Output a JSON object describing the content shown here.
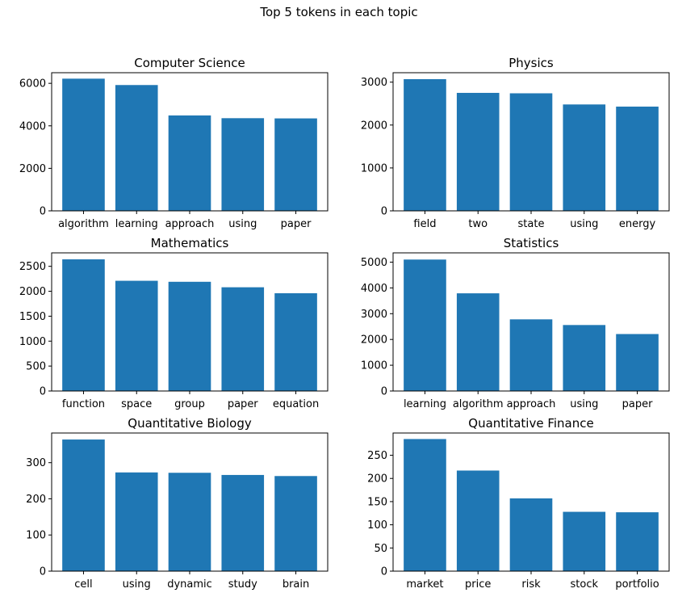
{
  "figure": {
    "suptitle": "Top 5 tokens in each topic",
    "bar_color": "#1f77b4"
  },
  "chart_data": [
    {
      "type": "bar",
      "title": "Computer Science",
      "categories": [
        "algorithm",
        "learning",
        "approach",
        "using",
        "paper"
      ],
      "values": [
        6220,
        5920,
        4490,
        4360,
        4350
      ],
      "ylim": [
        0,
        6500
      ],
      "yticks": [
        0,
        2000,
        4000,
        6000
      ],
      "xlabel": "",
      "ylabel": "",
      "grid": false
    },
    {
      "type": "bar",
      "title": "Physics",
      "categories": [
        "field",
        "two",
        "state",
        "using",
        "energy"
      ],
      "values": [
        3070,
        2750,
        2740,
        2480,
        2430
      ],
      "ylim": [
        0,
        3220
      ],
      "yticks": [
        0,
        1000,
        2000,
        3000
      ],
      "xlabel": "",
      "ylabel": "",
      "grid": false
    },
    {
      "type": "bar",
      "title": "Mathematics",
      "categories": [
        "function",
        "space",
        "group",
        "paper",
        "equation"
      ],
      "values": [
        2640,
        2210,
        2190,
        2080,
        1960
      ],
      "ylim": [
        0,
        2770
      ],
      "yticks": [
        0,
        500,
        1000,
        1500,
        2000,
        2500
      ],
      "xlabel": "",
      "ylabel": "",
      "grid": false
    },
    {
      "type": "bar",
      "title": "Statistics",
      "categories": [
        "learning",
        "algorithm",
        "approach",
        "using",
        "paper"
      ],
      "values": [
        5100,
        3790,
        2780,
        2560,
        2210
      ],
      "ylim": [
        0,
        5360
      ],
      "yticks": [
        0,
        1000,
        2000,
        3000,
        4000,
        5000
      ],
      "xlabel": "",
      "ylabel": "",
      "grid": false
    },
    {
      "type": "bar",
      "title": "Quantitative Biology",
      "categories": [
        "cell",
        "using",
        "dynamic",
        "study",
        "brain"
      ],
      "values": [
        364,
        273,
        272,
        266,
        263
      ],
      "ylim": [
        0,
        382
      ],
      "yticks": [
        0,
        100,
        200,
        300
      ],
      "xlabel": "",
      "ylabel": "",
      "grid": false
    },
    {
      "type": "bar",
      "title": "Quantitative Finance",
      "categories": [
        "market",
        "price",
        "risk",
        "stock",
        "portfolio"
      ],
      "values": [
        285,
        217,
        157,
        128,
        127
      ],
      "ylim": [
        0,
        298
      ],
      "yticks": [
        0,
        50,
        100,
        150,
        200,
        250
      ],
      "xlabel": "",
      "ylabel": "",
      "grid": false
    }
  ]
}
